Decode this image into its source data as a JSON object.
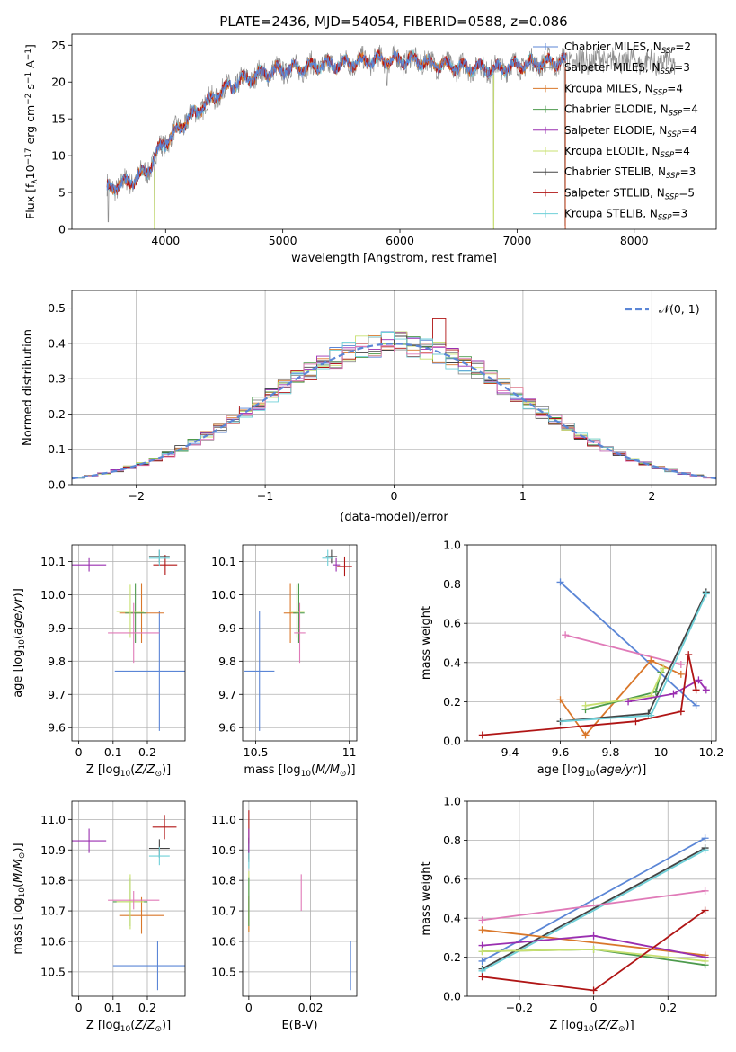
{
  "figure": {
    "title": "PLATE=2436, MJD=54054, FIBERID=0588, z=0.086"
  },
  "colors": {
    "Chabrier MILES": "#5b86d6",
    "Salpeter MILES": "#8e8e8e",
    "Kroupa MILES": "#d9772a",
    "Chabrier ELODIE": "#4c9a4c",
    "Salpeter ELODIE": "#9a2fb0",
    "Kroupa ELODIE": "#c8e070",
    "Chabrier STELIB": "#444444",
    "Salpeter STELIB": "#b01515",
    "Kroupa STELIB": "#6fd0d8",
    "Pink": "#e07ab8",
    "Normal": "#5b86d6"
  },
  "chart_data": [
    {
      "id": "spectrum",
      "type": "line",
      "xlabel": "wavelength [Angstrom, rest frame]",
      "ylabel_parts": [
        "Flux [f",
        "λ",
        "10",
        "−17",
        " erg cm",
        "−2",
        " s",
        "−1",
        " A",
        "−1",
        "]"
      ],
      "xlim": [
        3200,
        8700
      ],
      "ylim": [
        0,
        26.5
      ],
      "xticks": [
        4000,
        5000,
        6000,
        7000,
        8000
      ],
      "yticks": [
        0,
        5,
        10,
        15,
        20,
        25
      ],
      "grid": false,
      "legend_position": "right",
      "legend": [
        {
          "label": "Chabrier MILES, N",
          "sub": "SSP",
          "value": "=2",
          "color": "#5b86d6"
        },
        {
          "label": "Salpeter MILES, N",
          "sub": "SSP",
          "value": "=3",
          "color": "#8e8e8e"
        },
        {
          "label": "Kroupa MILES, N",
          "sub": "SSP",
          "value": "=4",
          "color": "#d9772a"
        },
        {
          "label": "Chabrier ELODIE, N",
          "sub": "SSP",
          "value": "=4",
          "color": "#4c9a4c"
        },
        {
          "label": "Salpeter ELODIE, N",
          "sub": "SSP",
          "value": "=4",
          "color": "#9a2fb0"
        },
        {
          "label": "Kroupa ELODIE, N",
          "sub": "SSP",
          "value": "=4",
          "color": "#c8e070"
        },
        {
          "label": "Chabrier STELIB, N",
          "sub": "SSP",
          "value": "=3",
          "color": "#444444"
        },
        {
          "label": "Salpeter STELIB, N",
          "sub": "SSP",
          "value": "=5",
          "color": "#b01515"
        },
        {
          "label": "Kroupa STELIB, N",
          "sub": "SSP",
          "value": "=3",
          "color": "#6fd0d8"
        }
      ],
      "continuum": [
        [
          3500,
          5.5
        ],
        [
          3700,
          6.5
        ],
        [
          3850,
          8
        ],
        [
          3950,
          11
        ],
        [
          4100,
          13.5
        ],
        [
          4300,
          16.5
        ],
        [
          4500,
          19
        ],
        [
          4700,
          20.5
        ],
        [
          4900,
          21.5
        ],
        [
          5200,
          22
        ],
        [
          5500,
          22.5
        ],
        [
          5800,
          23
        ],
        [
          6100,
          23
        ],
        [
          6500,
          22
        ],
        [
          6800,
          21.8
        ],
        [
          7100,
          22.5
        ],
        [
          7400,
          22.8
        ],
        [
          7800,
          23
        ],
        [
          8300,
          22.5
        ]
      ],
      "spikes": [
        [
          3510,
          0.5
        ],
        [
          3905,
          0
        ],
        [
          5175,
          19.5
        ],
        [
          5890,
          19
        ],
        [
          6800,
          0
        ],
        [
          7410,
          0
        ],
        [
          4330,
          15.5
        ]
      ]
    },
    {
      "id": "residuals",
      "type": "histogram",
      "xlabel": "(data-model)/error",
      "ylabel": "Normed distribution",
      "xlim": [
        -2.5,
        2.5
      ],
      "ylim": [
        0,
        0.55
      ],
      "xticks": [
        -2,
        -1,
        0,
        1,
        2
      ],
      "yticks": [
        0.0,
        0.1,
        0.2,
        0.3,
        0.4,
        0.5
      ],
      "grid": true,
      "legend_label": "𝒩(0, 1)",
      "legend_position": "top-right",
      "bin_width": 0.1
    },
    {
      "id": "age_vs_Z",
      "type": "scatter",
      "xlabel": "Z [log10(Z/Z⊙)]",
      "ylabel": "age  [log10(age/yr)]",
      "xlim": [
        -0.02,
        0.31
      ],
      "ylim": [
        9.56,
        10.15
      ],
      "xticks": [
        0.0,
        0.1,
        0.2
      ],
      "yticks": [
        9.6,
        9.7,
        9.8,
        9.9,
        10.0,
        10.1
      ],
      "grid": true,
      "points": [
        {
          "model": "Chabrier MILES",
          "x": 0.235,
          "xerr": 0.13,
          "y": 9.77,
          "yerr": 0.18
        },
        {
          "model": "Salpeter ELODIE",
          "x": 0.03,
          "xerr": 0.05,
          "y": 10.09,
          "yerr": 0.02
        },
        {
          "model": "Salpeter STELIB",
          "x": 0.252,
          "xerr": 0.035,
          "y": 10.09,
          "yerr": 0.03
        },
        {
          "model": "Chabrier STELIB",
          "x": 0.235,
          "xerr": 0.03,
          "y": 10.115,
          "yerr": 0.02
        },
        {
          "model": "Kroupa STELIB",
          "x": 0.235,
          "xerr": 0.03,
          "y": 10.11,
          "yerr": 0.025
        },
        {
          "model": "Kroupa MILES",
          "x": 0.183,
          "xerr": 0.065,
          "y": 9.945,
          "yerr": 0.09
        },
        {
          "model": "Chabrier ELODIE",
          "x": 0.165,
          "xerr": 0.03,
          "y": 9.945,
          "yerr": 0.09
        },
        {
          "model": "Kroupa ELODIE",
          "x": 0.15,
          "xerr": 0.04,
          "y": 9.95,
          "yerr": 0.08
        },
        {
          "model": "Pink",
          "x": 0.16,
          "xerr": 0.075,
          "y": 9.885,
          "yerr": 0.09
        }
      ]
    },
    {
      "id": "age_vs_mass",
      "type": "scatter",
      "xlabel": "mass [log10(M/M⊙)]",
      "ylabel": "",
      "xlim": [
        10.43,
        11.04
      ],
      "ylim": [
        9.56,
        10.15
      ],
      "xticks": [
        10.5,
        11.0
      ],
      "yticks": [
        9.6,
        9.7,
        9.8,
        9.9,
        10.0,
        10.1
      ],
      "grid": true,
      "points": [
        {
          "model": "Chabrier MILES",
          "x": 10.52,
          "xerr": 0.08,
          "y": 9.77,
          "yerr": 0.18
        },
        {
          "model": "Salpeter ELODIE",
          "x": 10.93,
          "xerr": 0.02,
          "y": 10.09,
          "yerr": 0.02
        },
        {
          "model": "Salpeter STELIB",
          "x": 10.975,
          "xerr": 0.04,
          "y": 10.085,
          "yerr": 0.03
        },
        {
          "model": "Chabrier STELIB",
          "x": 10.905,
          "xerr": 0.03,
          "y": 10.115,
          "yerr": 0.02
        },
        {
          "model": "Kroupa STELIB",
          "x": 10.885,
          "xerr": 0.03,
          "y": 10.11,
          "yerr": 0.025
        },
        {
          "model": "Kroupa MILES",
          "x": 10.685,
          "xerr": 0.035,
          "y": 9.945,
          "yerr": 0.09
        },
        {
          "model": "Chabrier ELODIE",
          "x": 10.73,
          "xerr": 0.03,
          "y": 9.945,
          "yerr": 0.09
        },
        {
          "model": "Kroupa ELODIE",
          "x": 10.72,
          "xerr": 0.04,
          "y": 9.95,
          "yerr": 0.08
        },
        {
          "model": "Pink",
          "x": 10.735,
          "xerr": 0.03,
          "y": 9.885,
          "yerr": 0.09
        }
      ]
    },
    {
      "id": "weight_vs_age",
      "type": "line",
      "xlabel": "age  [log10(age/yr)]",
      "ylabel": "mass weight",
      "xlim": [
        9.23,
        10.22
      ],
      "ylim": [
        0,
        1.0
      ],
      "xticks": [
        9.4,
        9.6,
        9.8,
        10.0,
        10.2
      ],
      "yticks": [
        0.0,
        0.2,
        0.4,
        0.6,
        0.8,
        1.0
      ],
      "grid": true,
      "series": [
        {
          "model": "Chabrier MILES",
          "x": [
            9.6,
            10.14
          ],
          "y": [
            0.81,
            0.18
          ]
        },
        {
          "model": "Pink",
          "x": [
            9.62,
            10.08
          ],
          "y": [
            0.54,
            0.39
          ]
        },
        {
          "model": "Kroupa MILES",
          "x": [
            9.6,
            9.7,
            9.96,
            10.08
          ],
          "y": [
            0.21,
            0.03,
            0.41,
            0.34
          ]
        },
        {
          "model": "Chabrier STELIB",
          "x": [
            9.6,
            9.95,
            10.18
          ],
          "y": [
            0.1,
            0.14,
            0.76
          ]
        },
        {
          "model": "Kroupa STELIB",
          "x": [
            9.61,
            9.96,
            10.18
          ],
          "y": [
            0.1,
            0.13,
            0.75
          ]
        },
        {
          "model": "Chabrier ELODIE",
          "x": [
            9.7,
            9.98,
            10.0
          ],
          "y": [
            0.16,
            0.25,
            0.35
          ]
        },
        {
          "model": "Kroupa ELODIE",
          "x": [
            9.7,
            9.96,
            10.01
          ],
          "y": [
            0.18,
            0.23,
            0.37
          ]
        },
        {
          "model": "Salpeter ELODIE",
          "x": [
            9.87,
            10.05,
            10.15,
            10.18
          ],
          "y": [
            0.2,
            0.24,
            0.31,
            0.26
          ]
        },
        {
          "model": "Salpeter STELIB",
          "x": [
            9.29,
            9.9,
            10.08,
            10.11,
            10.14
          ],
          "y": [
            0.03,
            0.1,
            0.15,
            0.44,
            0.26
          ]
        }
      ]
    },
    {
      "id": "mass_vs_Z",
      "type": "scatter",
      "xlabel": "Z [log10(Z/Z⊙)]",
      "ylabel": "mass [log10(M/M⊙)]",
      "xlim": [
        -0.02,
        0.31
      ],
      "ylim": [
        10.42,
        11.06
      ],
      "xticks": [
        0.0,
        0.1,
        0.2
      ],
      "yticks": [
        10.5,
        10.6,
        10.7,
        10.8,
        10.9,
        11.0
      ],
      "grid": true,
      "points": [
        {
          "model": "Chabrier MILES",
          "x": 0.23,
          "xerr": 0.13,
          "y": 10.52,
          "yerr": 0.08
        },
        {
          "model": "Salpeter ELODIE",
          "x": 0.03,
          "xerr": 0.05,
          "y": 10.93,
          "yerr": 0.04
        },
        {
          "model": "Salpeter STELIB",
          "x": 0.25,
          "xerr": 0.035,
          "y": 10.975,
          "yerr": 0.04
        },
        {
          "model": "Chabrier STELIB",
          "x": 0.235,
          "xerr": 0.03,
          "y": 10.905,
          "yerr": 0.03
        },
        {
          "model": "Kroupa STELIB",
          "x": 0.235,
          "xerr": 0.03,
          "y": 10.88,
          "yerr": 0.03
        },
        {
          "model": "Kroupa MILES",
          "x": 0.183,
          "xerr": 0.065,
          "y": 10.685,
          "yerr": 0.06
        },
        {
          "model": "Chabrier ELODIE",
          "x": 0.15,
          "xerr": 0.05,
          "y": 10.73,
          "yerr": 0.08
        },
        {
          "model": "Kroupa ELODIE",
          "x": 0.15,
          "xerr": 0.04,
          "y": 10.73,
          "yerr": 0.09
        },
        {
          "model": "Pink",
          "x": 0.16,
          "xerr": 0.075,
          "y": 10.735,
          "yerr": 0.03
        }
      ]
    },
    {
      "id": "mass_vs_ebv",
      "type": "scatter",
      "xlabel": "E(B-V)",
      "ylabel": "",
      "xlim": [
        -0.002,
        0.035
      ],
      "ylim": [
        10.42,
        11.06
      ],
      "xticks": [
        0.0,
        0.02
      ],
      "yticks": [
        10.5,
        10.6,
        10.7,
        10.8,
        10.9,
        11.0
      ],
      "grid": true,
      "points": [
        {
          "model": "Chabrier MILES",
          "x": 0.033,
          "xerr": 0.0,
          "y": 10.52,
          "yerr": 0.08
        },
        {
          "model": "Pink",
          "x": 0.017,
          "xerr": 0.0,
          "y": 10.76,
          "yerr": 0.06
        },
        {
          "model": "Salpeter STELIB",
          "x": 0.0,
          "xerr": 0.0,
          "y": 10.95,
          "yerr": 0.08
        },
        {
          "model": "Chabrier STELIB",
          "x": 0.0,
          "xerr": 0.0,
          "y": 10.9,
          "yerr": 0.04
        },
        {
          "model": "Kroupa STELIB",
          "x": 0.0,
          "xerr": 0.0,
          "y": 10.88,
          "yerr": 0.04
        },
        {
          "model": "Salpeter ELODIE",
          "x": 0.0,
          "xerr": 0.0,
          "y": 10.93,
          "yerr": 0.04
        },
        {
          "model": "Kroupa ELODIE",
          "x": 0.0,
          "xerr": 0.0,
          "y": 10.73,
          "yerr": 0.1
        },
        {
          "model": "Kroupa MILES",
          "x": 0.0,
          "xerr": 0.0,
          "y": 10.69,
          "yerr": 0.06
        },
        {
          "model": "Chabrier ELODIE",
          "x": 0.0,
          "xerr": 0.0,
          "y": 10.73,
          "yerr": 0.08
        }
      ]
    },
    {
      "id": "weight_vs_Z",
      "type": "line",
      "xlabel": "Z [log10(Z/Z⊙)]",
      "ylabel": "mass weight",
      "xlim": [
        -0.34,
        0.33
      ],
      "ylim": [
        0,
        1.0
      ],
      "xticks": [
        -0.2,
        0.0,
        0.2
      ],
      "yticks": [
        0.0,
        0.2,
        0.4,
        0.6,
        0.8,
        1.0
      ],
      "grid": true,
      "series": [
        {
          "model": "Chabrier MILES",
          "x": [
            -0.3,
            0.3
          ],
          "y": [
            0.18,
            0.81
          ]
        },
        {
          "model": "Chabrier STELIB",
          "x": [
            -0.3,
            0.3
          ],
          "y": [
            0.14,
            0.76
          ]
        },
        {
          "model": "Kroupa STELIB",
          "x": [
            -0.3,
            0.3
          ],
          "y": [
            0.13,
            0.75
          ]
        },
        {
          "model": "Pink",
          "x": [
            -0.3,
            0.3
          ],
          "y": [
            0.39,
            0.54
          ]
        },
        {
          "model": "Kroupa MILES",
          "x": [
            -0.3,
            0.3
          ],
          "y": [
            0.34,
            0.21
          ]
        },
        {
          "model": "Salpeter ELODIE",
          "x": [
            -0.3,
            0.0,
            0.3
          ],
          "y": [
            0.26,
            0.31,
            0.2
          ]
        },
        {
          "model": "Chabrier ELODIE",
          "x": [
            -0.3,
            0.0,
            0.3
          ],
          "y": [
            0.23,
            0.24,
            0.16
          ]
        },
        {
          "model": "Kroupa ELODIE",
          "x": [
            -0.3,
            0.0,
            0.3
          ],
          "y": [
            0.23,
            0.24,
            0.18
          ]
        },
        {
          "model": "Salpeter STELIB",
          "x": [
            -0.3,
            0.0,
            0.3
          ],
          "y": [
            0.1,
            0.03,
            0.44
          ]
        }
      ]
    }
  ]
}
